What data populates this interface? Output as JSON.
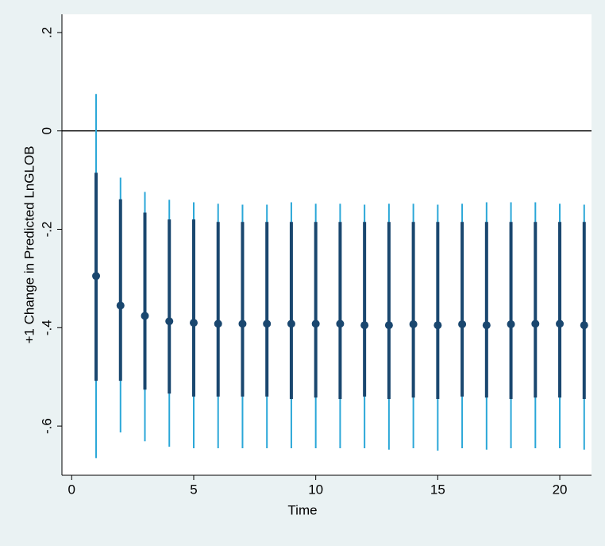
{
  "chart_data": {
    "type": "dot",
    "xlabel": "Time",
    "ylabel": "+1 Change in Predicted LnGLOB",
    "x": [
      1,
      2,
      3,
      4,
      5,
      6,
      7,
      8,
      9,
      10,
      11,
      12,
      13,
      14,
      15,
      16,
      17,
      18,
      19,
      20,
      21
    ],
    "values": [
      -0.295,
      -0.355,
      -0.376,
      -0.387,
      -0.39,
      -0.392,
      -0.392,
      -0.392,
      -0.392,
      -0.392,
      -0.392,
      -0.395,
      -0.395,
      -0.393,
      -0.395,
      -0.393,
      -0.395,
      -0.393,
      -0.392,
      -0.392,
      -0.395
    ],
    "inner_low": [
      -0.508,
      -0.508,
      -0.526,
      -0.534,
      -0.54,
      -0.54,
      -0.54,
      -0.54,
      -0.545,
      -0.542,
      -0.545,
      -0.54,
      -0.545,
      -0.542,
      -0.545,
      -0.54,
      -0.542,
      -0.545,
      -0.542,
      -0.542,
      -0.545
    ],
    "inner_high": [
      -0.085,
      -0.139,
      -0.166,
      -0.18,
      -0.18,
      -0.185,
      -0.185,
      -0.185,
      -0.185,
      -0.185,
      -0.185,
      -0.185,
      -0.185,
      -0.185,
      -0.185,
      -0.185,
      -0.185,
      -0.185,
      -0.185,
      -0.185,
      -0.185
    ],
    "outer_low": [
      -0.665,
      -0.613,
      -0.631,
      -0.642,
      -0.645,
      -0.645,
      -0.645,
      -0.645,
      -0.645,
      -0.645,
      -0.645,
      -0.645,
      -0.648,
      -0.645,
      -0.65,
      -0.645,
      -0.648,
      -0.645,
      -0.645,
      -0.645,
      -0.648
    ],
    "outer_high": [
      0.075,
      -0.095,
      -0.124,
      -0.14,
      -0.145,
      -0.148,
      -0.15,
      -0.15,
      -0.145,
      -0.148,
      -0.148,
      -0.15,
      -0.148,
      -0.148,
      -0.15,
      -0.148,
      -0.145,
      -0.145,
      -0.145,
      -0.148,
      -0.15
    ],
    "color": "#1a476f",
    "inner_color": "#1a476f",
    "outer_color": "#2aa7d8",
    "xlim": [
      -0.4,
      21.3
    ],
    "ylim": [
      -0.7,
      0.237
    ],
    "xticks": [
      0,
      5,
      10,
      15,
      20
    ],
    "yticks": [
      {
        "value": 0.2,
        "label": ".2"
      },
      0,
      {
        "value": -0.2,
        "label": "-.2"
      },
      {
        "value": -0.4,
        "label": "-.4"
      },
      {
        "value": -0.6,
        "label": "-.6"
      }
    ],
    "reference_line": 0
  }
}
